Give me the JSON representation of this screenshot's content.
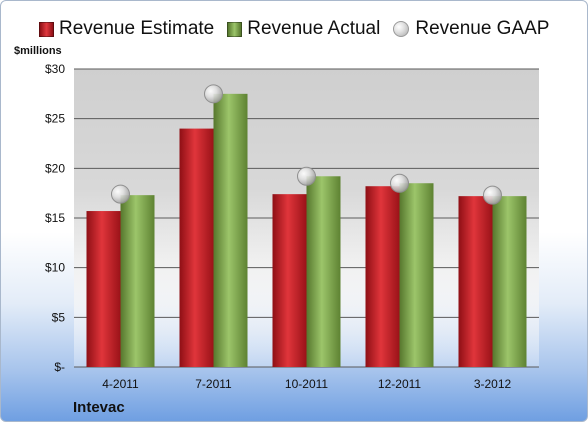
{
  "units_label": "$millions",
  "company": "Intevac",
  "colors": {
    "estimate": "#c0151d",
    "actual": "#7ba443",
    "gaap_marker": "#c8c8c8",
    "gridline": "#5a5a5a"
  },
  "chart_data": {
    "type": "bar",
    "categories": [
      "4-2011",
      "7-2011",
      "10-2011",
      "12-2011",
      "3-2012"
    ],
    "series": [
      {
        "name": "Revenue Estimate",
        "kind": "bar",
        "values": [
          15.7,
          24.0,
          17.4,
          18.2,
          17.2
        ]
      },
      {
        "name": "Revenue Actual",
        "kind": "bar",
        "values": [
          17.3,
          27.5,
          19.2,
          18.5,
          17.2
        ]
      },
      {
        "name": "Revenue GAAP",
        "kind": "marker",
        "values": [
          17.4,
          27.5,
          19.2,
          18.5,
          17.3
        ]
      }
    ],
    "ylabel": "$millions",
    "ylim": [
      0,
      30
    ],
    "yticks": [
      0,
      5,
      10,
      15,
      20,
      25,
      30
    ],
    "ytick_labels": [
      "$-",
      "$5",
      "$10",
      "$15",
      "$20",
      "$25",
      "$30"
    ],
    "grid": true,
    "legend_position": "top"
  }
}
